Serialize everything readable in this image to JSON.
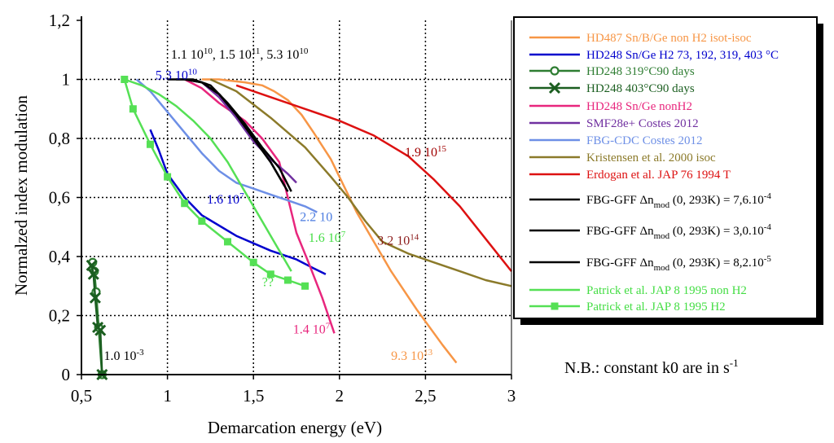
{
  "chart_data": {
    "type": "line",
    "xlabel": "Demarcation energy (eV)",
    "ylabel": "Normalzed index modulation",
    "xlim": [
      0.5,
      3
    ],
    "ylim": [
      0,
      1.2
    ],
    "grid": true,
    "xticks": [
      "0,5",
      "1",
      "1,5",
      "2",
      "2,5",
      "3"
    ],
    "yticks": [
      "0",
      "0,2",
      "0,4",
      "0,6",
      "0,8",
      "1",
      "1,2"
    ],
    "legend_position": "right",
    "series": [
      {
        "name": "HD487 Sn/B/Ge non H2 isot-isoc",
        "color": "#f79646",
        "x": [
          1.2,
          1.3,
          1.45,
          1.55,
          1.62,
          1.7,
          1.78,
          1.85,
          1.95,
          2.1,
          2.3,
          2.45,
          2.6,
          2.68
        ],
        "y": [
          1.0,
          1.0,
          0.99,
          0.98,
          0.96,
          0.93,
          0.88,
          0.82,
          0.73,
          0.55,
          0.35,
          0.22,
          0.1,
          0.04
        ]
      },
      {
        "name": "HD248 Sn/Ge H2 73, 192, 319, 403 °C",
        "color": "#0000cd",
        "x": [
          0.9,
          0.95,
          1.0,
          1.1,
          1.2,
          1.4,
          1.6,
          1.75,
          1.85,
          1.92
        ],
        "y": [
          0.83,
          0.76,
          0.68,
          0.6,
          0.54,
          0.47,
          0.42,
          0.39,
          0.36,
          0.34
        ]
      },
      {
        "name": "HD248 319°C90 days",
        "color": "#2e7d32",
        "marker": "diamond",
        "x": [
          0.565,
          0.575,
          0.585,
          0.6,
          0.62
        ],
        "y": [
          0.38,
          0.35,
          0.28,
          0.16,
          0.0
        ]
      },
      {
        "name": "HD248 403°C90 days",
        "color": "#1b5e20",
        "marker": "x",
        "x": [
          0.56,
          0.57,
          0.58,
          0.595,
          0.61,
          0.62
        ],
        "y": [
          0.37,
          0.34,
          0.26,
          0.16,
          0.15,
          0.0
        ]
      },
      {
        "name": "HD248 Sn/Ge nonH2",
        "color": "#e8267d",
        "x": [
          1.1,
          1.2,
          1.3,
          1.45,
          1.55,
          1.65,
          1.7,
          1.75,
          1.82,
          1.9,
          1.97
        ],
        "y": [
          1.0,
          0.97,
          0.92,
          0.86,
          0.8,
          0.72,
          0.6,
          0.48,
          0.38,
          0.26,
          0.14
        ]
      },
      {
        "name": "SMF28e+ Costes 2012",
        "color": "#7030a0",
        "x": [
          1.2,
          1.3,
          1.4,
          1.5,
          1.6,
          1.7,
          1.75
        ],
        "y": [
          0.99,
          0.94,
          0.87,
          0.79,
          0.73,
          0.68,
          0.65
        ]
      },
      {
        "name": "FBG-CDC Costes 2012",
        "color": "#6d8fe6",
        "x": [
          0.82,
          0.9,
          1.0,
          1.1,
          1.2,
          1.3,
          1.4,
          1.5,
          1.6,
          1.7,
          1.8,
          1.87
        ],
        "y": [
          1.0,
          0.96,
          0.89,
          0.82,
          0.75,
          0.69,
          0.65,
          0.63,
          0.61,
          0.59,
          0.57,
          0.55
        ]
      },
      {
        "name": "Kristensen et al. 2000 isoc",
        "color": "#8b7a2a",
        "x": [
          1.25,
          1.4,
          1.6,
          1.8,
          1.95,
          2.05,
          2.15,
          2.25,
          2.4,
          2.55,
          2.7,
          2.85,
          3.0
        ],
        "y": [
          1.0,
          0.96,
          0.87,
          0.77,
          0.67,
          0.6,
          0.52,
          0.45,
          0.41,
          0.38,
          0.35,
          0.32,
          0.3
        ]
      },
      {
        "name": "Erdogan et al. JAP 76 1994 T",
        "color": "#dd1111",
        "x": [
          1.4,
          1.6,
          1.8,
          2.0,
          2.2,
          2.4,
          2.55,
          2.7,
          2.85,
          3.0
        ],
        "y": [
          0.98,
          0.94,
          0.9,
          0.86,
          0.81,
          0.74,
          0.66,
          0.57,
          0.46,
          0.35
        ]
      },
      {
        "name": "FBG-GFF Δn_mod (0, 293K) = 7,6.10⁻⁴",
        "color": "#000000",
        "x": [
          1.0,
          1.1,
          1.2,
          1.3,
          1.4,
          1.5,
          1.6,
          1.7
        ],
        "y": [
          1.0,
          1.0,
          0.99,
          0.95,
          0.88,
          0.8,
          0.72,
          0.62
        ]
      },
      {
        "name": "FBG-GFF Δn_mod (0, 293K) = 3,0.10⁻⁴",
        "color": "#000000",
        "x": [
          1.05,
          1.15,
          1.25,
          1.35,
          1.45,
          1.55,
          1.65,
          1.72
        ],
        "y": [
          1.0,
          1.0,
          0.98,
          0.92,
          0.85,
          0.77,
          0.7,
          0.62
        ]
      },
      {
        "name": "FBG-GFF Δn_mod (0, 293K) = 8,2.10⁻⁵",
        "color": "#000000",
        "x": [
          1.1,
          1.2,
          1.3,
          1.4,
          1.5,
          1.6,
          1.68
        ],
        "y": [
          1.0,
          0.99,
          0.95,
          0.88,
          0.8,
          0.72,
          0.64
        ]
      },
      {
        "name": "Patrick et al. JAP 8 1995 non H2",
        "color": "#55e055",
        "x": [
          0.75,
          0.85,
          0.95,
          1.05,
          1.15,
          1.25,
          1.35,
          1.45,
          1.55,
          1.65,
          1.72
        ],
        "y": [
          1.0,
          0.98,
          0.95,
          0.91,
          0.86,
          0.8,
          0.72,
          0.62,
          0.52,
          0.42,
          0.35
        ]
      },
      {
        "name": "Patrick et al. JAP 8 1995 H2",
        "color": "#55e055",
        "marker": "square",
        "x": [
          0.75,
          0.8,
          0.9,
          1.0,
          1.1,
          1.2,
          1.35,
          1.5,
          1.6,
          1.7,
          1.8
        ],
        "y": [
          1.0,
          0.9,
          0.78,
          0.67,
          0.58,
          0.52,
          0.45,
          0.38,
          0.34,
          0.32,
          0.3
        ]
      }
    ],
    "annotations": [
      {
        "text": "1.1 10^10, 1.5 10^11, 5.3 10^10",
        "parts": [
          "1.1 10",
          "10",
          ", 1.5 10",
          "11",
          ", 5.3 10",
          "10"
        ],
        "x": 1.02,
        "y": 1.07,
        "color": "#000000"
      },
      {
        "text": "5.3 10^10",
        "parts": [
          "5.3 10",
          "10"
        ],
        "x": 0.93,
        "y": 1.0,
        "color": "#0000cd"
      },
      {
        "text": "1.9 10^15",
        "parts": [
          "1.9 10",
          "15"
        ],
        "x": 2.38,
        "y": 0.74,
        "color": "#a00000"
      },
      {
        "text": "1.6 10^7",
        "parts": [
          "1.6 10",
          "7"
        ],
        "x": 1.23,
        "y": 0.58,
        "color": "#0000cd"
      },
      {
        "text": "2.2 10",
        "parts": [
          "2.2 10",
          ""
        ],
        "x": 1.77,
        "y": 0.52,
        "color": "#4a7be0"
      },
      {
        "text": "1.6 10^7",
        "parts": [
          "1.6 10",
          "7"
        ],
        "x": 1.82,
        "y": 0.45,
        "color": "#44dd44"
      },
      {
        "text": "3.2 10^14",
        "parts": [
          "3.2 10",
          "14"
        ],
        "x": 2.22,
        "y": 0.44,
        "color": "#8b1a1a"
      },
      {
        "text": "??",
        "parts": [
          "??",
          ""
        ],
        "x": 1.55,
        "y": 0.3,
        "color": "#44dd44"
      },
      {
        "text": "1.4 10^7",
        "parts": [
          "1.4 10",
          "7"
        ],
        "x": 1.73,
        "y": 0.14,
        "color": "#e8267d"
      },
      {
        "text": "9.3 10^13",
        "parts": [
          "9.3 10",
          "13"
        ],
        "x": 2.3,
        "y": 0.05,
        "color": "#f79646"
      },
      {
        "text": "1.0 10^-3",
        "parts": [
          "1.0 10",
          "-3"
        ],
        "x": 0.63,
        "y": 0.05,
        "color": "#000000"
      }
    ],
    "legend_entries": [
      {
        "key": "orange",
        "label": "HD487 Sn/B/Ge non H2 isot-isoc",
        "color": "#f79646"
      },
      {
        "key": "blue",
        "label": "HD248 Sn/Ge H2 73, 192, 319, 403 °C",
        "color": "#0000cd"
      },
      {
        "key": "green-diamond",
        "label": "HD248 319°C90 days",
        "color": "#2e7d32"
      },
      {
        "key": "green-x",
        "label": "HD248 403°C90 days",
        "color": "#1b5e20"
      },
      {
        "key": "pink",
        "label": "HD248 Sn/Ge nonH2",
        "color": "#e8267d"
      },
      {
        "key": "purple",
        "label": "SMF28e+ Costes 2012",
        "color": "#7030a0"
      },
      {
        "key": "lightblue",
        "label": "FBG-CDC Costes 2012",
        "color": "#6d8fe6"
      },
      {
        "key": "olive",
        "label": "Kristensen et al. 2000 isoc",
        "color": "#8b7a2a"
      },
      {
        "key": "red",
        "label": "Erdogan et al. JAP 76 1994 T",
        "color": "#dd1111"
      },
      {
        "key": "black1",
        "pre": "FBG-GFF  Δn",
        "sub": "mod",
        "mid": " (0, 293K) = 7,6.10",
        "sup": "-4",
        "color": "#000000"
      },
      {
        "key": "black2",
        "pre": "FBG-GFF  Δn",
        "sub": "mod",
        "mid": " (0, 293K) = 3,0.10",
        "sup": "-4",
        "color": "#000000"
      },
      {
        "key": "black3",
        "pre": "FBG-GFF  Δn",
        "sub": "mod",
        "mid": " (0, 293K) = 8,2.10",
        "sup": "-5",
        "color": "#000000"
      },
      {
        "key": "lightgreen",
        "label": "Patrick et al. JAP 8 1995 non H2",
        "color": "#44dd44"
      },
      {
        "key": "lightgreen-sq",
        "label": "Patrick et al. JAP 8 1995 H2",
        "color": "#44dd44"
      }
    ],
    "note": {
      "pre": "N.B.: constant k0 are in s",
      "sup": "-1"
    }
  }
}
